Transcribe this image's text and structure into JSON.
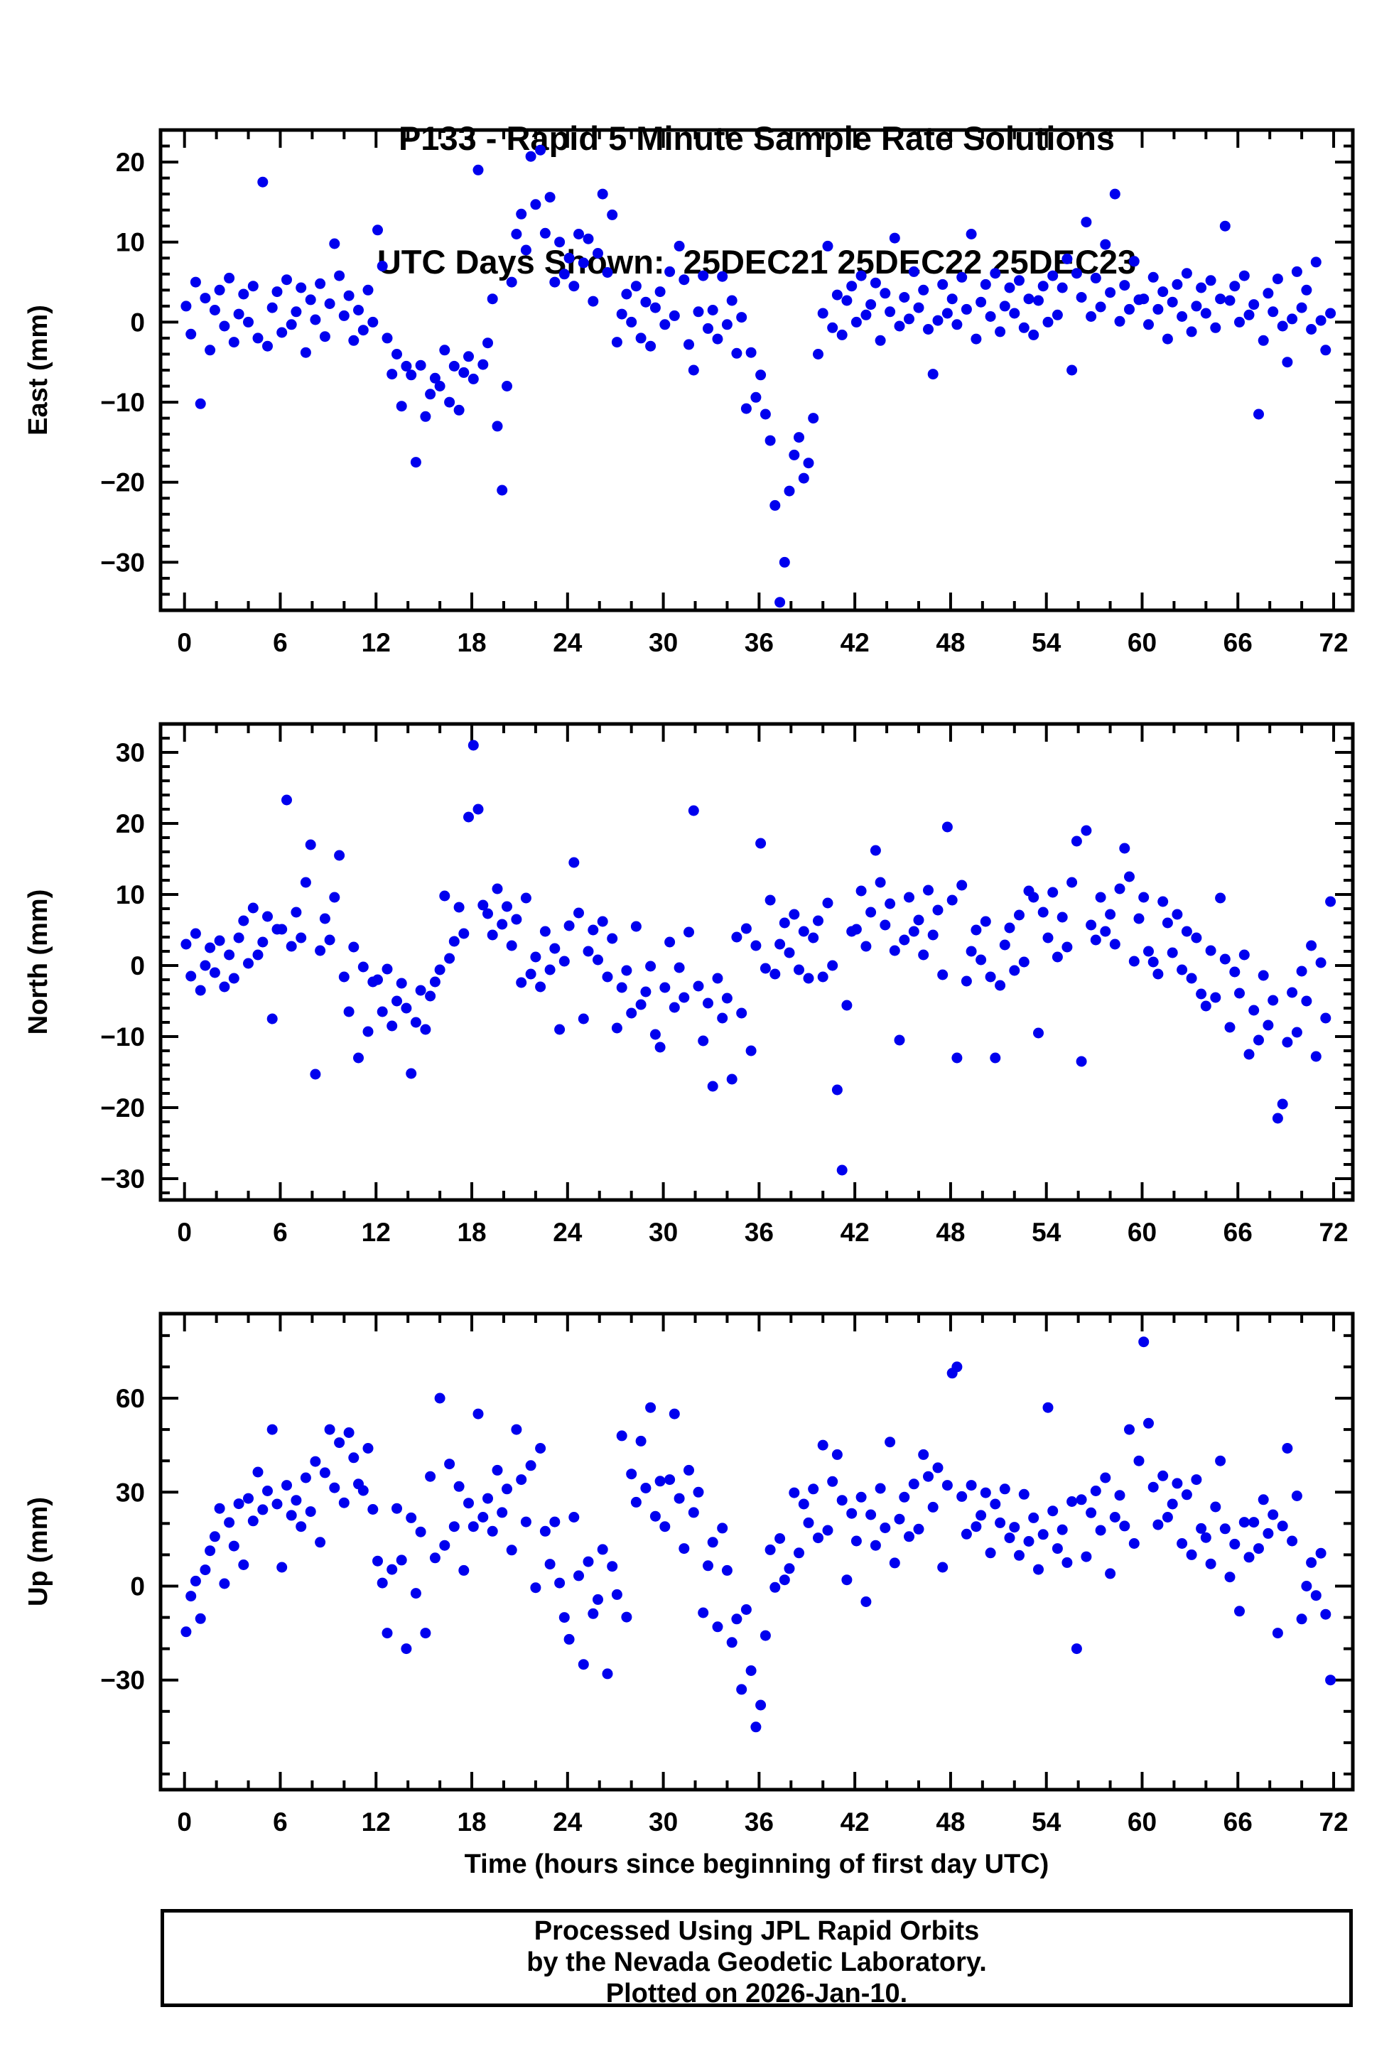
{
  "title": {
    "line1": "P133 - Rapid 5 Minute Sample Rate Solutions",
    "line2": "UTC Days Shown:  25DEC21 25DEC22 25DEC23"
  },
  "footer": {
    "line1": "Processed Using JPL Rapid Orbits",
    "line2": "by the Nevada Geodetic Laboratory.",
    "line3": "Plotted on 2026-Jan-10."
  },
  "chart_data": {
    "type": "scatter",
    "title": "P133 - Rapid 5 Minute Sample Rate Solutions",
    "subtitle": "UTC Days Shown:  25DEC21 25DEC22 25DEC23",
    "point_color": "#0000ee",
    "x_label": "Time (hours since beginning of first day UTC)",
    "x_ticks": [
      0,
      6,
      12,
      18,
      24,
      30,
      36,
      42,
      48,
      54,
      60,
      66,
      72
    ],
    "x_minor_step": 2,
    "xlim": [
      -1.5,
      73.2
    ],
    "x_start": 0.1,
    "x_step": 0.3,
    "panels": [
      {
        "name": "East",
        "ylabel": "East (mm)",
        "ylim": [
          -36,
          24
        ],
        "yticks": [
          -30,
          -20,
          -10,
          0,
          10,
          20
        ],
        "y_minor_step": 2,
        "y": [
          2.0,
          -1.5,
          5.0,
          -10.2,
          3.0,
          -3.5,
          1.5,
          4.0,
          -0.5,
          5.5,
          -2.5,
          1.0,
          3.5,
          0.0,
          4.5,
          -2.0,
          17.5,
          -3.0,
          1.8,
          3.8,
          -1.3,
          5.3,
          -0.3,
          1.3,
          4.3,
          -3.8,
          2.8,
          0.3,
          4.8,
          -1.8,
          2.3,
          9.8,
          5.8,
          0.8,
          3.3,
          -2.3,
          1.5,
          -1.0,
          4.0,
          0.0,
          11.5,
          7.0,
          -2.0,
          -6.5,
          -4.0,
          -10.5,
          -5.5,
          -6.6,
          -17.5,
          -5.4,
          -11.8,
          -9.0,
          -7.0,
          -8.0,
          -3.5,
          -10.0,
          -5.5,
          -11.0,
          -6.3,
          -4.3,
          -7.1,
          19.0,
          -5.3,
          -2.6,
          2.9,
          -13.0,
          -21.0,
          -8.0,
          5.0,
          11.0,
          13.5,
          9.0,
          20.7,
          14.7,
          21.5,
          11.1,
          15.6,
          5.0,
          10.0,
          6.0,
          8.0,
          4.5,
          11.0,
          7.4,
          10.4,
          2.6,
          8.6,
          16.0,
          6.2,
          13.4,
          -2.5,
          1.0,
          3.5,
          0.0,
          4.5,
          -2.0,
          2.5,
          -3.0,
          1.8,
          3.8,
          -0.3,
          6.3,
          0.8,
          9.5,
          5.3,
          -2.8,
          -6.0,
          1.3,
          5.8,
          -0.8,
          1.5,
          -2.1,
          5.7,
          -0.3,
          2.7,
          -3.9,
          0.6,
          -10.8,
          -3.8,
          -9.4,
          -6.6,
          -11.5,
          -14.8,
          -22.9,
          -35.0,
          -30.0,
          -21.1,
          -16.6,
          -14.4,
          -19.5,
          -17.6,
          -12.0,
          -4.0,
          1.1,
          9.5,
          -0.7,
          3.4,
          -1.6,
          2.7,
          4.5,
          0.0,
          5.8,
          0.9,
          2.2,
          4.9,
          -2.3,
          3.6,
          1.3,
          10.5,
          -0.5,
          3.1,
          0.4,
          6.3,
          1.8,
          4.0,
          -0.9,
          -6.5,
          0.2,
          4.7,
          1.1,
          2.9,
          -0.3,
          5.6,
          1.6,
          11.0,
          -2.1,
          2.5,
          4.7,
          0.7,
          6.1,
          -1.2,
          2.0,
          4.3,
          1.1,
          5.2,
          -0.7,
          2.9,
          -1.6,
          2.7,
          4.5,
          0.0,
          5.8,
          0.9,
          4.3,
          7.9,
          -6.0,
          6.1,
          3.1,
          12.5,
          0.7,
          5.5,
          1.9,
          9.7,
          3.7,
          16.0,
          0.1,
          4.6,
          1.6,
          7.6,
          2.8,
          2.9,
          -0.3,
          5.6,
          1.6,
          3.8,
          -2.1,
          2.5,
          4.7,
          0.7,
          6.1,
          -1.2,
          2.0,
          4.3,
          1.1,
          5.2,
          -0.7,
          2.9,
          12.0,
          2.7,
          4.5,
          0.0,
          5.8,
          0.9,
          2.2,
          -11.5,
          -2.3,
          3.6,
          1.3,
          5.4,
          -0.5,
          -5.0,
          0.4,
          6.3,
          1.8,
          4.0,
          -0.9,
          7.5,
          0.2,
          -3.5,
          1.1
        ]
      },
      {
        "name": "North",
        "ylabel": "North (mm)",
        "ylim": [
          -33,
          34
        ],
        "yticks": [
          -30,
          -20,
          -10,
          0,
          10,
          20,
          30
        ],
        "y_minor_step": 2,
        "y": [
          3.0,
          -1.5,
          4.5,
          -3.5,
          0.0,
          2.5,
          -1.0,
          3.5,
          -3.0,
          1.5,
          -1.8,
          3.9,
          6.3,
          0.3,
          8.1,
          1.5,
          3.3,
          6.9,
          -7.5,
          5.1,
          5.1,
          23.3,
          2.7,
          7.5,
          3.9,
          11.7,
          17.0,
          -15.3,
          2.1,
          6.6,
          3.6,
          9.6,
          15.5,
          -1.6,
          -6.5,
          2.6,
          -13.0,
          -0.2,
          -9.3,
          -2.3,
          -2.0,
          -6.5,
          -0.5,
          -8.5,
          -5.0,
          -2.5,
          -6.0,
          -15.2,
          -8.0,
          -3.5,
          -9.0,
          -4.3,
          -2.3,
          -0.6,
          9.8,
          1.0,
          3.4,
          8.2,
          4.5,
          20.9,
          31.0,
          22.0,
          8.5,
          7.3,
          4.3,
          10.8,
          5.8,
          8.3,
          2.8,
          6.5,
          -2.4,
          9.5,
          -1.2,
          1.2,
          -3.0,
          4.8,
          -0.6,
          2.4,
          -9.0,
          0.6,
          5.6,
          14.5,
          7.4,
          -7.5,
          2.0,
          5.0,
          0.8,
          6.2,
          -1.6,
          3.8,
          -8.8,
          -3.1,
          -0.7,
          -6.7,
          5.5,
          -5.5,
          -3.7,
          -0.1,
          -9.7,
          -11.5,
          -3.1,
          3.3,
          -5.9,
          -0.3,
          -4.5,
          4.7,
          21.8,
          -2.9,
          -10.6,
          -5.3,
          -17.0,
          -1.8,
          -7.4,
          -4.6,
          -16.0,
          4.0,
          -6.7,
          5.2,
          -12.0,
          2.8,
          17.2,
          -0.4,
          9.2,
          -1.2,
          3.0,
          6.0,
          1.8,
          7.2,
          -0.6,
          4.8,
          -1.8,
          3.9,
          6.3,
          -1.6,
          8.8,
          0.0,
          -17.5,
          -28.8,
          -5.6,
          4.8,
          5.1,
          10.5,
          2.7,
          7.5,
          16.2,
          11.7,
          5.7,
          8.7,
          2.1,
          -10.5,
          3.6,
          9.6,
          4.8,
          6.4,
          1.5,
          10.6,
          4.3,
          7.8,
          -1.3,
          19.5,
          9.2,
          -13.0,
          11.3,
          -2.2,
          2.0,
          5.0,
          0.8,
          6.2,
          -1.6,
          -13.0,
          -2.8,
          2.9,
          5.3,
          -0.7,
          7.1,
          0.5,
          10.5,
          9.6,
          -9.5,
          7.5,
          3.9,
          10.3,
          1.2,
          6.8,
          2.6,
          11.7,
          17.5,
          -13.5,
          19.0,
          5.7,
          3.6,
          9.6,
          4.8,
          7.2,
          3.0,
          10.8,
          16.5,
          12.5,
          0.6,
          6.6,
          9.6,
          2.0,
          0.5,
          -1.2,
          9.0,
          6.0,
          1.8,
          7.2,
          -0.6,
          4.8,
          -1.8,
          3.9,
          -4.0,
          -5.7,
          2.1,
          -4.5,
          9.5,
          0.9,
          -8.7,
          -0.9,
          -3.9,
          1.5,
          -12.5,
          -6.3,
          -10.5,
          -1.4,
          -8.4,
          -4.9,
          -21.5,
          -19.5,
          -10.8,
          -3.8,
          -9.4,
          -0.8,
          -5.0,
          2.8,
          -12.8,
          0.4,
          -7.4,
          9.0
        ]
      },
      {
        "name": "Up",
        "ylabel": "Up (mm)",
        "ylim": [
          -65,
          87
        ],
        "yticks": [
          -30,
          0,
          30,
          60
        ],
        "y_minor_step": 10,
        "y": [
          -14.6,
          -3.2,
          1.6,
          -10.4,
          5.2,
          11.3,
          15.8,
          24.8,
          0.8,
          20.3,
          12.8,
          26.3,
          6.8,
          28.0,
          20.8,
          36.4,
          24.4,
          30.4,
          50.0,
          26.2,
          6.0,
          32.2,
          22.6,
          27.4,
          19.0,
          34.6,
          23.8,
          39.8,
          14.0,
          36.2,
          50.0,
          31.4,
          45.8,
          26.6,
          49.0,
          41.0,
          32.6,
          30.5,
          44.0,
          24.5,
          8.0,
          1.0,
          -15.0,
          5.3,
          24.8,
          8.3,
          -20.0,
          21.8,
          -2.3,
          17.3,
          -15.0,
          35.0,
          9.0,
          60.0,
          13.0,
          39.0,
          19.0,
          31.8,
          5.0,
          26.5,
          19.0,
          55.0,
          22.0,
          28.0,
          17.5,
          37.0,
          23.5,
          31.0,
          11.5,
          50.0,
          34.0,
          20.5,
          38.5,
          -0.5,
          44.0,
          17.5,
          7.0,
          20.5,
          1.0,
          -10.0,
          -17.0,
          22.0,
          3.3,
          -25.0,
          7.8,
          -8.8,
          -4.3,
          11.7,
          -28.0,
          6.3,
          -2.7,
          48.0,
          -9.9,
          35.8,
          26.8,
          46.3,
          31.3,
          57.0,
          22.3,
          33.5,
          19.0,
          34.0,
          55.0,
          28.0,
          12.0,
          37.0,
          23.5,
          30.0,
          -8.5,
          6.5,
          14.0,
          -13.0,
          18.5,
          5.0,
          -18.0,
          -10.5,
          -33.0,
          -7.5,
          -27.0,
          -45.0,
          -38.0,
          -15.8,
          11.6,
          -0.4,
          15.2,
          2.0,
          5.6,
          29.8,
          10.6,
          26.2,
          20.2,
          31.0,
          15.4,
          45.0,
          17.8,
          33.4,
          42.0,
          27.4,
          2.0,
          23.2,
          14.4,
          28.4,
          -5.0,
          22.8,
          13.0,
          31.2,
          18.6,
          46.0,
          7.4,
          21.4,
          28.4,
          15.8,
          32.6,
          18.2,
          42.0,
          35.0,
          25.2,
          37.8,
          6.0,
          32.2,
          68.0,
          70.0,
          28.6,
          16.6,
          32.2,
          19.0,
          22.6,
          29.8,
          10.6,
          26.2,
          20.2,
          31.0,
          15.4,
          18.8,
          9.8,
          29.3,
          14.3,
          21.8,
          5.3,
          16.5,
          57.0,
          24.0,
          12.0,
          18.0,
          7.5,
          27.0,
          -20.0,
          27.6,
          9.4,
          23.4,
          30.4,
          17.8,
          34.6,
          4.0,
          22.0,
          29.0,
          19.2,
          50.0,
          13.6,
          40.0,
          78.0,
          52.0,
          31.6,
          19.6,
          35.2,
          22.0,
          26.2,
          32.8,
          13.6,
          29.2,
          10.0,
          34.0,
          18.4,
          15.5,
          7.1,
          25.3,
          40.0,
          18.3,
          2.9,
          13.4,
          -8.0,
          20.4,
          9.2,
          20.4,
          12.0,
          27.6,
          16.8,
          22.8,
          -15.0,
          19.2,
          44.0,
          14.4,
          28.8,
          -10.5,
          0.0,
          7.5,
          -3.0,
          10.5,
          -9.0,
          -30.0
        ]
      }
    ]
  }
}
